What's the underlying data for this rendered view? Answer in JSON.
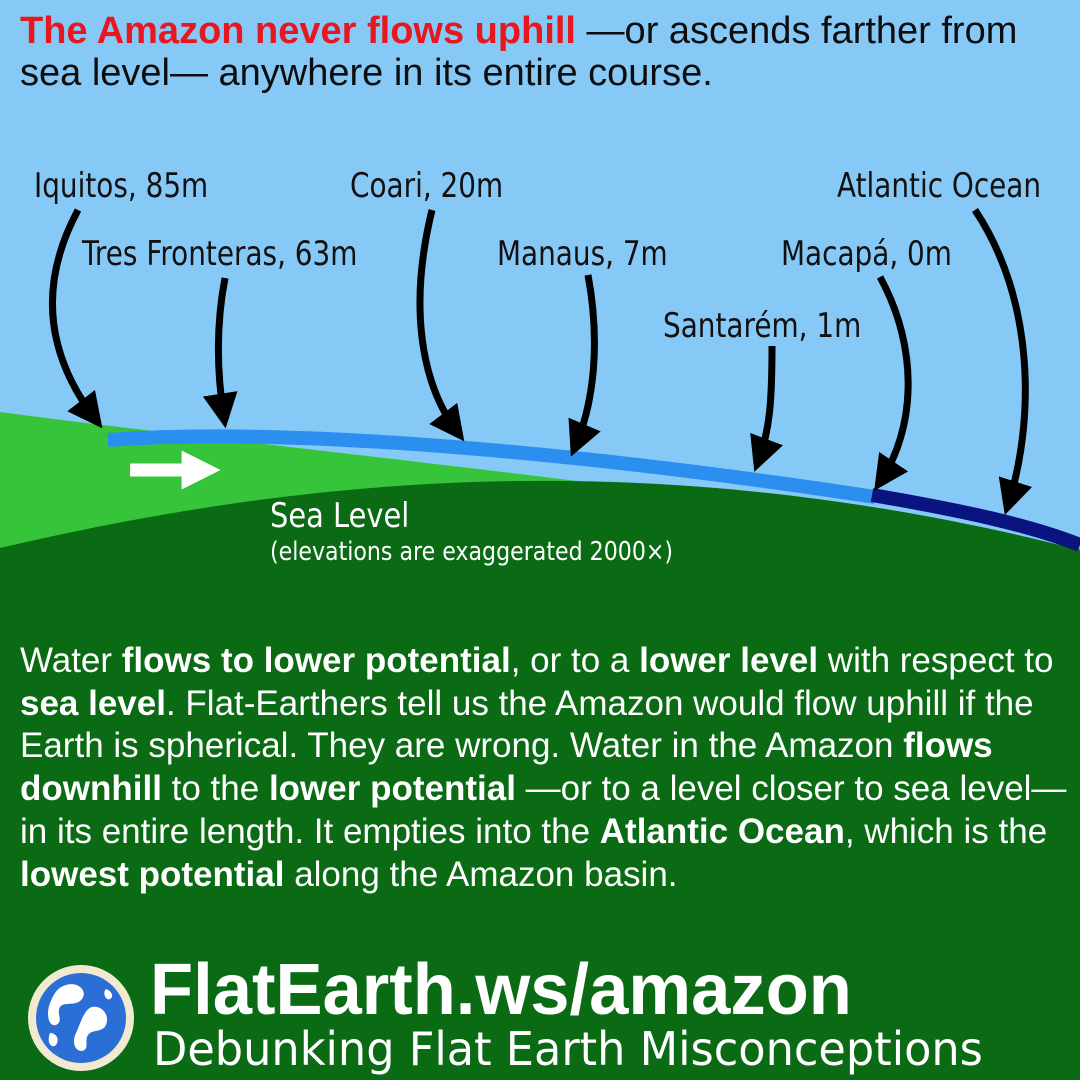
{
  "headline": {
    "highlight": "The Amazon never flows uphill",
    "rest": " —or ascends farther from sea level— anywhere in its entire course."
  },
  "places": {
    "iquitos": "Iquitos, 85m",
    "tres_fronteras": "Tres Fronteras, 63m",
    "coari": "Coari, 20m",
    "manaus": "Manaus, 7m",
    "santarem": "Santarém, 1m",
    "macapa": "Macapá, 0m",
    "atlantic": "Atlantic Ocean"
  },
  "sea_level": {
    "label": "Sea Level",
    "note": "(elevations are exaggerated 2000×)"
  },
  "body": {
    "s1": "Water ",
    "b1": "flows to lower potential",
    "s2": ", or to a ",
    "b2": "lower level",
    "s3": " with respect to ",
    "b3": "sea level",
    "s4": ". Flat-Earthers tell us the Amazon would flow uphill if the Earth is spherical. They are wrong. Water in the Amazon ",
    "b4": "flows downhill",
    "s5": " to the ",
    "b5": "lower potential",
    "s6": " —or to a level closer to sea level— in its entire length. It empties into the ",
    "b6": "Atlantic Ocean",
    "s7": ", which is the ",
    "b7": "lowest potential",
    "s8": " along the Amazon basin."
  },
  "footer": {
    "site": "FlatEarth.ws/amazon",
    "tagline": "Debunking Flat Earth Misconceptions"
  },
  "colors": {
    "sky": "#87c9f6",
    "land_light": "#35c43a",
    "land_dark": "#0a6b14",
    "river": "#2b8ff0",
    "ocean": "#0a1480",
    "headline_red": "#e8161e"
  }
}
